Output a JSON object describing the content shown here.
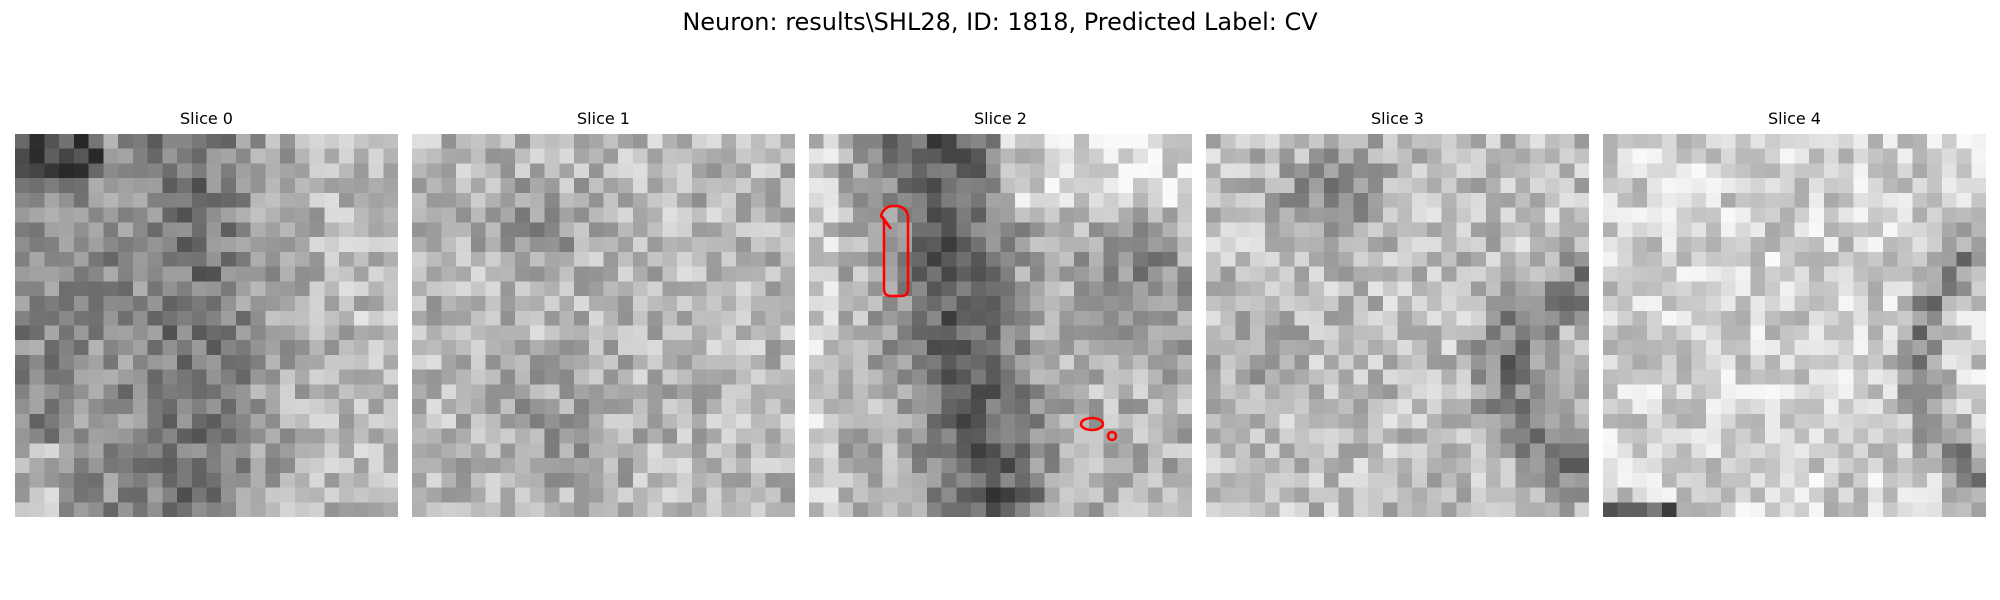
{
  "figure": {
    "suptitle": "Neuron: results\\SHL28, ID: 1818, Predicted Label: CV"
  },
  "panels": [
    {
      "title": "Slice 0"
    },
    {
      "title": "Slice 1"
    },
    {
      "title": "Slice 2"
    },
    {
      "title": "Slice 3"
    },
    {
      "title": "Slice 4"
    }
  ],
  "colors": {
    "contour": "#ff0000",
    "colormap": "gray"
  }
}
